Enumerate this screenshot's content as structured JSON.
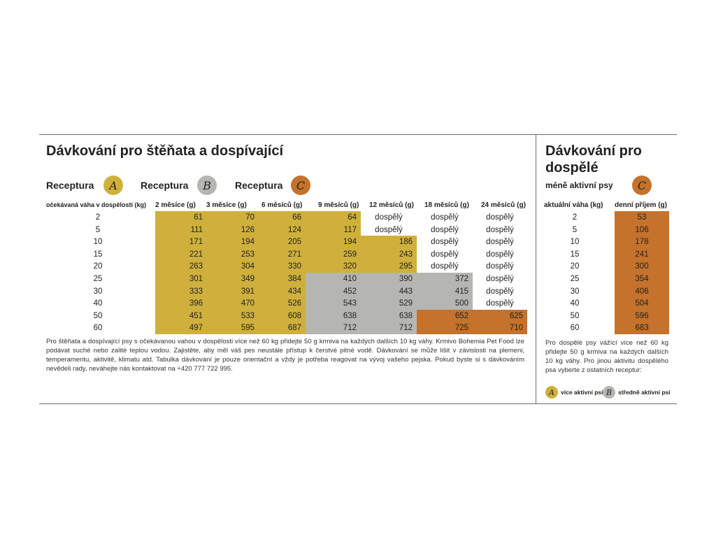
{
  "left": {
    "title": "Dávkování pro štěňata a dospívající",
    "recipes": [
      {
        "label": "Receptura",
        "badge": "A"
      },
      {
        "label": "Receptura",
        "badge": "B"
      },
      {
        "label": "Receptura",
        "badge": "C"
      }
    ],
    "weight_header": "očekávaná váha v dospělosti (kg)",
    "columns": [
      "2 měsíce (g)",
      "3 měsíce (g)",
      "6 měsíců (g)",
      "9 měsíců (g)",
      "12 měsíců (g)",
      "18 měsíců (g)",
      "24 měsíců (g)"
    ],
    "rows": [
      {
        "weight": "2",
        "values": [
          "61",
          "70",
          "66",
          "64",
          "dospělý",
          "dospělý",
          "dospělý"
        ]
      },
      {
        "weight": "5",
        "values": [
          "111",
          "126",
          "124",
          "117",
          "dospělý",
          "dospělý",
          "dospělý"
        ]
      },
      {
        "weight": "10",
        "values": [
          "171",
          "194",
          "205",
          "194",
          "186",
          "dospělý",
          "dospělý"
        ]
      },
      {
        "weight": "15",
        "values": [
          "221",
          "253",
          "271",
          "259",
          "243",
          "dospělý",
          "dospělý"
        ]
      },
      {
        "weight": "20",
        "values": [
          "263",
          "304",
          "330",
          "320",
          "295",
          "dospělý",
          "dospělý"
        ]
      },
      {
        "weight": "25",
        "values": [
          "301",
          "349",
          "384",
          "410",
          "390",
          "372",
          "dospělý"
        ]
      },
      {
        "weight": "30",
        "values": [
          "333",
          "391",
          "434",
          "452",
          "443",
          "415",
          "dospělý"
        ]
      },
      {
        "weight": "40",
        "values": [
          "396",
          "470",
          "526",
          "543",
          "529",
          "500",
          "dospělý"
        ]
      },
      {
        "weight": "50",
        "values": [
          "451",
          "533",
          "608",
          "638",
          "638",
          "652",
          "625"
        ]
      },
      {
        "weight": "60",
        "values": [
          "497",
          "595",
          "687",
          "712",
          "712",
          "725",
          "710"
        ]
      }
    ],
    "note": "Pro štěňata a dospívající psy s očekávanou vahou v dospělosti více než 60 kg přidejte 50 g krmiva na každých dalších 10 kg váhy. Krmivo Bohemia Pet Food lze podávat suché nebo zalité teplou vodou. Zajistěte, aby měl váš pes neustále přístup k čerstvé pitné vodě. Dávkování se může lišit v závislosti na plemeni, temperamentu, aktivitě, klimatu atd. Tabulka dávkování je pouze orientační a vždy je potřeba reagovat na vývoj vašeho pejska. Pokud byste si s dávkováním nevědeli rady, neváhejte nás kontaktovat na +420 777 722 995."
  },
  "right": {
    "title": "Dávkování pro dospělé",
    "subtitle": "méně aktivní psy",
    "badge": "C",
    "col_weight": "aktuální váha (kg)",
    "col_intake": "denní příjem (g)",
    "rows": [
      {
        "weight": "2",
        "intake": "53"
      },
      {
        "weight": "5",
        "intake": "106"
      },
      {
        "weight": "10",
        "intake": "178"
      },
      {
        "weight": "15",
        "intake": "241"
      },
      {
        "weight": "20",
        "intake": "300"
      },
      {
        "weight": "25",
        "intake": "354"
      },
      {
        "weight": "30",
        "intake": "406"
      },
      {
        "weight": "40",
        "intake": "504"
      },
      {
        "weight": "50",
        "intake": "596"
      },
      {
        "weight": "60",
        "intake": "683"
      }
    ],
    "note": "Pro dospělé psy vážící více než 60 kg přidejte 50 g krmiva na každých dalších 10 kg váhy. Pro jinou aktivitu dospělého psa vyberte z ostatních receptur:",
    "legend": [
      {
        "badge": "A",
        "label": "více aktivní psi"
      },
      {
        "badge": "B",
        "label": "středně aktivní psi"
      }
    ]
  },
  "colors": {
    "recipe_a": "#cfb03c",
    "recipe_b": "#b5b5b1",
    "recipe_c": "#c4722c"
  },
  "shading": [
    [
      "A",
      "A",
      "A",
      "A",
      "",
      "",
      ""
    ],
    [
      "A",
      "A",
      "A",
      "A",
      "",
      "",
      ""
    ],
    [
      "A",
      "A",
      "A",
      "A",
      "A",
      "",
      ""
    ],
    [
      "A",
      "A",
      "A",
      "A",
      "A",
      "",
      ""
    ],
    [
      "A",
      "A",
      "A",
      "A",
      "A",
      "",
      ""
    ],
    [
      "A",
      "A",
      "A",
      "B",
      "B",
      "B",
      ""
    ],
    [
      "A",
      "A",
      "A",
      "B",
      "B",
      "B",
      ""
    ],
    [
      "A",
      "A",
      "A",
      "B",
      "B",
      "B",
      ""
    ],
    [
      "A",
      "A",
      "A",
      "B",
      "B",
      "C",
      "C"
    ],
    [
      "A",
      "A",
      "A",
      "B",
      "B",
      "C",
      "C"
    ]
  ]
}
